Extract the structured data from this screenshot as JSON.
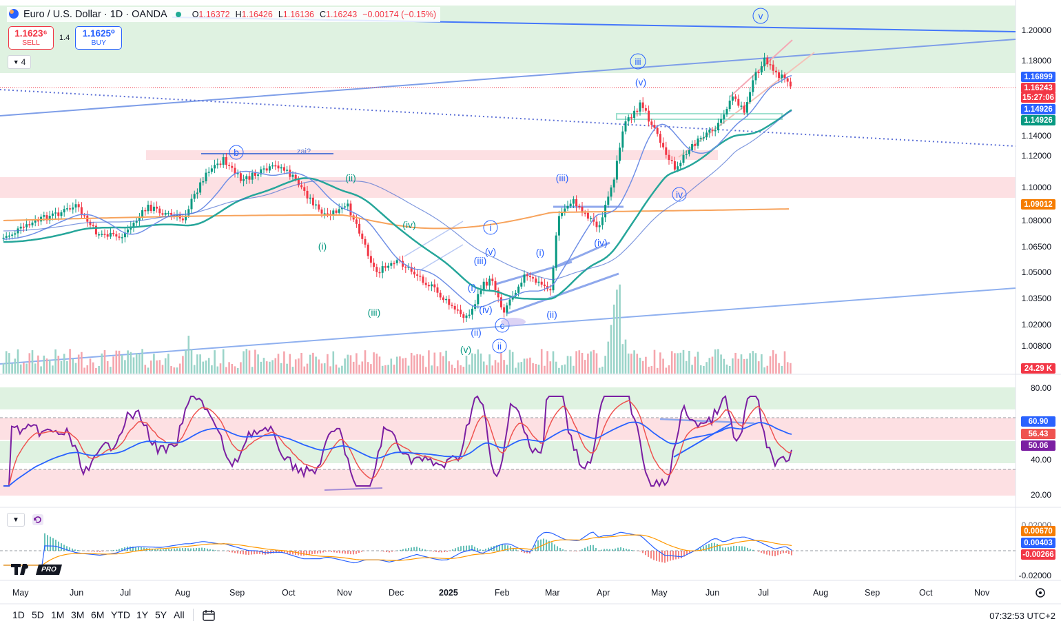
{
  "header": {
    "symbol": "Euro / U.S. Dollar · 1D · OANDA",
    "open_label": "O",
    "open": "1.16372",
    "high_label": "H",
    "high": "1.16426",
    "low_label": "L",
    "low": "1.16136",
    "close_label": "C",
    "close": "1.16243",
    "change": "−0.00174 (−0.15%)"
  },
  "trade": {
    "sell_price": "1.1623⁶",
    "sell_label": "SELL",
    "spread": "1.4",
    "buy_price": "1.1625⁰",
    "buy_label": "BUY"
  },
  "indicator_count": "4",
  "price_axis": {
    "ticks": [
      "1.20000",
      "1.18000",
      "1.14000",
      "1.12000",
      "1.10000",
      "1.08000",
      "1.06500",
      "1.05000",
      "1.03500",
      "1.02000",
      "1.00800"
    ],
    "badges": {
      "b1": "1.16899",
      "b2": "1.16243",
      "countdown": "15:27:06",
      "b3": "1.14926",
      "b4": "1.14926",
      "b5": "1.09012",
      "volume": "24.29 K"
    }
  },
  "rsi_axis": {
    "ticks": [
      "80.00",
      "40.00",
      "20.00"
    ],
    "badges": {
      "r1": "60.90",
      "r2": "56.43",
      "r3": "50.06"
    }
  },
  "macd_axis": {
    "ticks": [
      "0.02000",
      "-0.02000"
    ],
    "badges": {
      "m1": "0.00670",
      "m2": "0.00403",
      "m3": "-0.00266"
    }
  },
  "time_axis": {
    "labels": [
      "May",
      "Jun",
      "Jul",
      "Aug",
      "Sep",
      "Oct",
      "Nov",
      "Dec",
      "2025",
      "Feb",
      "Mar",
      "Apr",
      "May",
      "Jun",
      "Jul",
      "Aug",
      "Sep",
      "Oct",
      "Nov"
    ]
  },
  "wave_labels": {
    "v_top": "v",
    "iii_top": "iii",
    "v_paren": "(v)",
    "b": "b",
    "zai": "zai?",
    "ii_green": "(ii)",
    "iv_green": "(iv)",
    "i_green": "(i)",
    "iii_green": "(iii)",
    "v_green": "(v)",
    "iii_blue1": "(iii)",
    "i_circ": "i",
    "v_blue": "(v)",
    "iii_blue2": "(iii)",
    "i_blue": "(i)",
    "i_blue2": "(i)",
    "iv_blue": "(iv)",
    "ii_blue": "(ii)",
    "ii_blue2": "(ii)",
    "ii_circ": "ii",
    "c_circ": "c",
    "iv_blue2": "(iv)",
    "iv_circ": "iv"
  },
  "timeframes": [
    "1D",
    "5D",
    "1M",
    "3M",
    "6M",
    "YTD",
    "1Y",
    "5Y",
    "All"
  ],
  "clock": "07:32:53 UTC+2",
  "logo_text": "PRO",
  "colors": {
    "bull": "#22ab94",
    "bear": "#f23645",
    "accent": "#2962ff",
    "rsi": "#7b1fa2",
    "ma_orange": "#f7a35c",
    "ma_teal": "#26a69a"
  },
  "icons": [
    "globe-icon",
    "chevron-down-icon",
    "replay-icon",
    "calendar-icon",
    "settings-icon"
  ]
}
